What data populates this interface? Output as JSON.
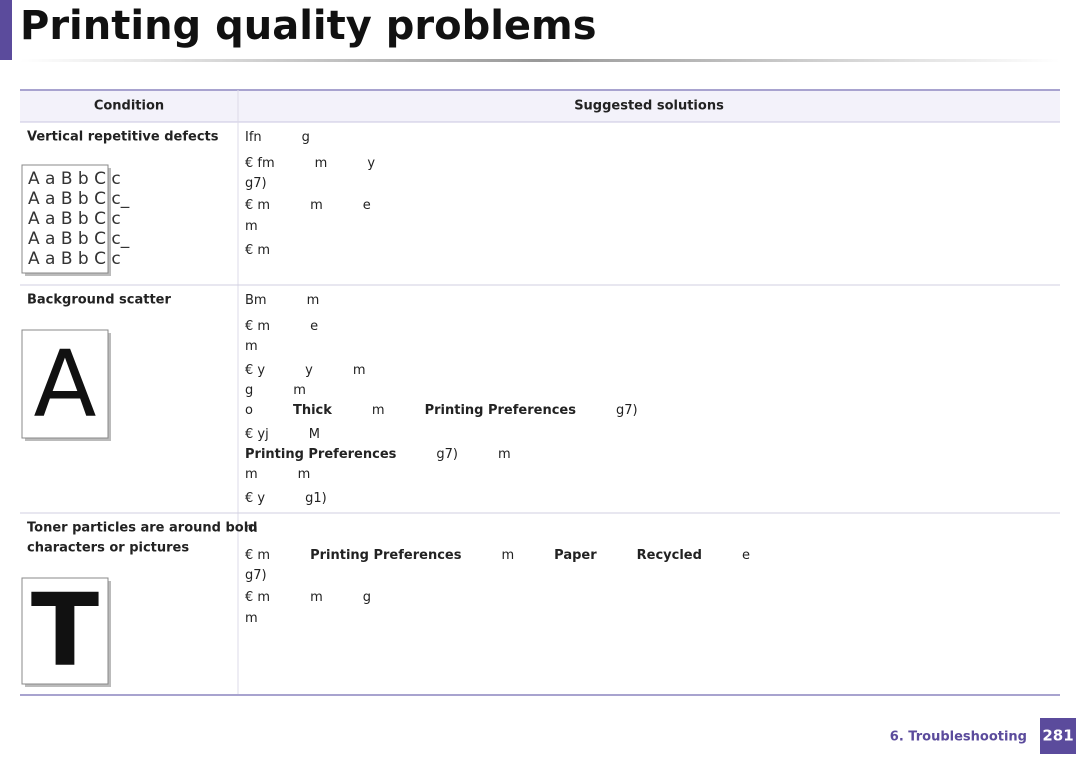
{
  "header": {
    "title": "Printing quality problems"
  },
  "table": {
    "columns": [
      "Condition",
      "Suggested solutions"
    ],
    "rows": [
      {
        "condition": [
          "Vertical repetitive defects"
        ],
        "sample": [
          "A a B b C c",
          "A a B b C c_",
          "A a B b C c",
          "A a B b C c_",
          "A a B b C c"
        ],
        "lines": [
          [
            {
              "text": "Ifn"
            },
            {
              "text": "g"
            }
          ],
          [
            {
              "text": "€ fm"
            },
            {
              "text": "m"
            },
            {
              "text": "y"
            }
          ],
          [
            {
              "text": "g7)"
            }
          ],
          [
            {
              "text": "€ m"
            },
            {
              "text": "m"
            },
            {
              "text": "e"
            }
          ],
          [
            {
              "text": "m"
            }
          ],
          [
            {
              "text": "€ m"
            }
          ]
        ]
      },
      {
        "condition": [
          "Background scatter"
        ],
        "sample": [
          "A"
        ],
        "lines": [
          [
            {
              "text": "Bm"
            },
            {
              "text": "m"
            }
          ],
          [
            {
              "text": "€ m"
            },
            {
              "text": "e"
            }
          ],
          [
            {
              "text": "m"
            }
          ],
          [
            {
              "text": "€ y"
            },
            {
              "text": "y"
            },
            {
              "text": "m"
            }
          ],
          [
            {
              "text": "g"
            },
            {
              "text": "m"
            }
          ],
          [
            {
              "text": "o"
            },
            {
              "text": "Thick",
              "bold": true
            },
            {
              "text": "m"
            },
            {
              "text": "Printing Preferences",
              "bold": true
            },
            {
              "text": "g7)"
            }
          ],
          [
            {
              "text": "€ yj"
            },
            {
              "text": "M"
            }
          ],
          [
            {
              "text": "Printing Preferences",
              "bold": true
            },
            {
              "text": "g7)"
            },
            {
              "text": "m"
            }
          ],
          [
            {
              "text": "m"
            },
            {
              "text": "m"
            }
          ],
          [
            {
              "text": "€ y"
            },
            {
              "text": "g1)"
            }
          ]
        ]
      },
      {
        "condition": [
          "Toner particles are around bold",
          "characters or pictures"
        ],
        "sample": [
          "T"
        ],
        "lines": [
          [
            {
              "text": "m"
            }
          ],
          [
            {
              "text": "€ m"
            },
            {
              "text": "Printing Preferences",
              "bold": true
            },
            {
              "text": "m"
            },
            {
              "text": "Paper",
              "bold": true
            },
            {
              "text": "Recycled",
              "bold": true
            },
            {
              "text": "e"
            }
          ],
          [
            {
              "text": "g7)"
            }
          ],
          [
            {
              "text": "€ m"
            },
            {
              "text": "m"
            },
            {
              "text": "g"
            }
          ],
          [
            {
              "text": "m"
            }
          ]
        ]
      }
    ]
  },
  "footer": {
    "section": "6. Troubleshooting",
    "page": "281"
  }
}
